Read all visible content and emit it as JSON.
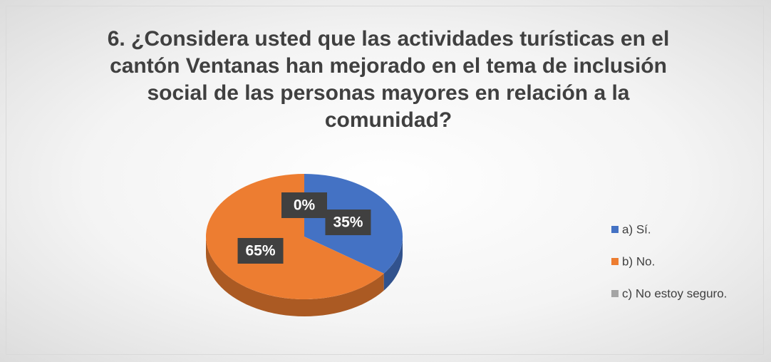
{
  "chart_data": {
    "type": "pie",
    "title": "6. ¿Considera usted que las actividades turísticas en el cantón Ventanas han mejorado en el tema de inclusión social de las personas mayores en relación a la comunidad?",
    "categories": [
      "a) Sí.",
      "b) No.",
      "c) No estoy seguro."
    ],
    "values": [
      35,
      65,
      0
    ],
    "value_labels": [
      "35%",
      "65%",
      "0%"
    ],
    "colors": [
      "#4472c4",
      "#ed7d31",
      "#a5a5a5"
    ],
    "legend": "right"
  }
}
